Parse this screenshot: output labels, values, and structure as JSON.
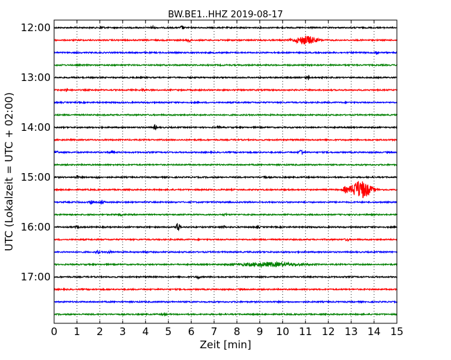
{
  "chart_data": {
    "type": "line",
    "title": "BW.BE1..HHZ 2019-08-17",
    "xlabel": "Zeit  [min]",
    "ylabel": "UTC (Lokalzeit = UTC + 02:00)",
    "xlim": [
      0,
      15
    ],
    "x_ticks": [
      "0",
      "1",
      "2",
      "3",
      "4",
      "5",
      "6",
      "7",
      "8",
      "9",
      "10",
      "11",
      "12",
      "13",
      "14",
      "15"
    ],
    "y_ticks": [
      {
        "label": "12:00",
        "trace": 0
      },
      {
        "label": "13:00",
        "trace": 4
      },
      {
        "label": "14:00",
        "trace": 8
      },
      {
        "label": "15:00",
        "trace": 12
      },
      {
        "label": "16:00",
        "trace": 16
      },
      {
        "label": "17:00",
        "trace": 20
      }
    ],
    "grid": "vertical dotted, every minute",
    "color_cycle": [
      "#000000",
      "#ff0000",
      "#0000ff",
      "#008000"
    ],
    "series": [
      {
        "start": "12:00",
        "events": [
          {
            "t": 2.1,
            "amp": 0.35
          },
          {
            "t": 4.3,
            "amp": 0.35
          },
          {
            "t": 5.6,
            "amp": 0.4
          }
        ]
      },
      {
        "start": "12:15",
        "events": [
          {
            "t": 5.9,
            "amp": 0.45
          },
          {
            "t": 11.0,
            "amp": 1.0,
            "dur": 0.7
          }
        ]
      },
      {
        "start": "12:30",
        "events": [
          {
            "t": 14.1,
            "amp": 0.35
          }
        ]
      },
      {
        "start": "12:45",
        "events": []
      },
      {
        "start": "13:00",
        "events": [
          {
            "t": 11.1,
            "amp": 0.55
          }
        ]
      },
      {
        "start": "13:15",
        "events": [
          {
            "t": 0.5,
            "amp": 0.3
          },
          {
            "t": 3.9,
            "amp": 0.25
          }
        ]
      },
      {
        "start": "13:30",
        "events": []
      },
      {
        "start": "13:45",
        "events": []
      },
      {
        "start": "14:00",
        "events": [
          {
            "t": 4.4,
            "amp": 0.5
          },
          {
            "t": 7.2,
            "amp": 0.2
          }
        ]
      },
      {
        "start": "14:15",
        "events": []
      },
      {
        "start": "14:30",
        "events": [
          {
            "t": 0.1,
            "amp": 0.3
          },
          {
            "t": 2.5,
            "amp": 0.25
          },
          {
            "t": 10.8,
            "amp": 0.8
          }
        ]
      },
      {
        "start": "14:45",
        "events": []
      },
      {
        "start": "15:00",
        "events": [
          {
            "t": 1.0,
            "amp": 0.3
          },
          {
            "t": 1.9,
            "amp": 0.2
          },
          {
            "t": 9.2,
            "amp": 0.25
          }
        ]
      },
      {
        "start": "15:15",
        "events": [
          {
            "t": 12.7,
            "amp": 0.55
          },
          {
            "t": 13.4,
            "amp": 2.2,
            "dur": 0.7
          }
        ]
      },
      {
        "start": "15:30",
        "events": [
          {
            "t": 1.6,
            "amp": 0.4
          },
          {
            "t": 2.1,
            "amp": 0.45
          }
        ]
      },
      {
        "start": "15:45",
        "events": [
          {
            "t": 2.9,
            "amp": 0.2
          },
          {
            "t": 7.5,
            "amp": 0.2
          }
        ]
      },
      {
        "start": "16:00",
        "events": [
          {
            "t": 1.0,
            "amp": 0.25
          },
          {
            "t": 5.4,
            "amp": 1.2
          },
          {
            "t": 7.4,
            "amp": 0.3
          },
          {
            "t": 8.9,
            "amp": 0.25
          }
        ]
      },
      {
        "start": "16:15",
        "events": [
          {
            "t": 12.8,
            "amp": 0.3
          }
        ]
      },
      {
        "start": "16:30",
        "events": [
          {
            "t": 1.9,
            "amp": 0.35
          },
          {
            "t": 2.4,
            "amp": 0.3
          },
          {
            "t": 4.0,
            "amp": 0.25
          }
        ]
      },
      {
        "start": "16:45",
        "events": [
          {
            "t": 9.4,
            "amp": 0.45,
            "dur": 2.0
          }
        ]
      },
      {
        "start": "17:00",
        "events": [
          {
            "t": 6.3,
            "amp": 0.45
          }
        ]
      },
      {
        "start": "17:15",
        "events": []
      },
      {
        "start": "17:30",
        "events": []
      },
      {
        "start": "17:45",
        "events": [
          {
            "t": 4.8,
            "amp": 0.35
          }
        ]
      }
    ]
  }
}
